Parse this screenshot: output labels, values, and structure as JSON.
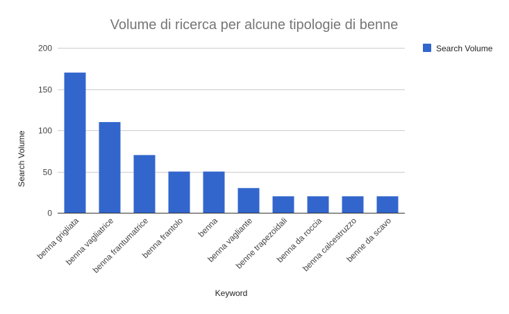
{
  "chart_data": {
    "type": "bar",
    "title": "Volume di ricerca per alcune tipologie di benne",
    "xlabel": "Keyword",
    "ylabel": "Search Volume",
    "categories": [
      "benna grigliata",
      "benna vagliatrice",
      "benna frantumatrice",
      "benna frantolo",
      "benna",
      "benna vagliante",
      "benne trapezoidali",
      "benna da roccia",
      "benna calcestruzzo",
      "benne da scavo"
    ],
    "series": [
      {
        "name": "Search Volume",
        "values": [
          170,
          110,
          70,
          50,
          50,
          30,
          20,
          20,
          20,
          20
        ],
        "color": "#3366cc"
      }
    ],
    "ylim": [
      0,
      200
    ],
    "yticks": [
      "0",
      "50",
      "100",
      "150",
      "200"
    ],
    "grid": true,
    "legend_position": "right"
  }
}
